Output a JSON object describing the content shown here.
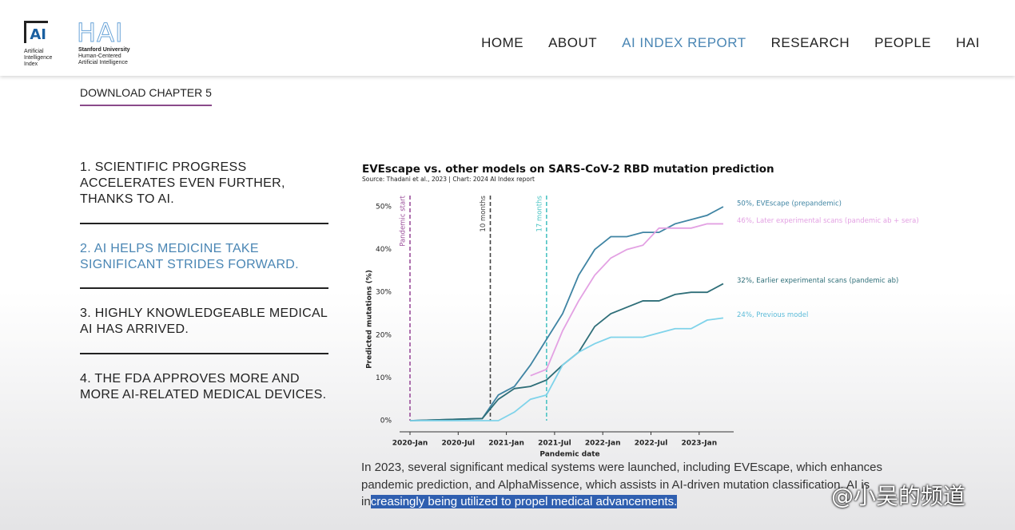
{
  "header": {
    "logo": "AI",
    "logo_lines": [
      "Artificial",
      "Intelligence",
      "Index"
    ],
    "hai": "HAI",
    "hai_lines": [
      "Stanford University",
      "Human-Centered",
      "Artificial Intelligence"
    ],
    "nav": [
      "HOME",
      "ABOUT",
      "AI INDEX REPORT",
      "RESEARCH",
      "PEOPLE",
      "HAI"
    ]
  },
  "download": "DOWNLOAD CHAPTER 5",
  "sidebar": [
    "1. SCIENTIFIC PROGRESS ACCELERATES EVEN FURTHER, THANKS TO AI.",
    "2. AI HELPS MEDICINE TAKE SIGNIFICANT STRIDES FORWARD.",
    "3. HIGHLY KNOWLEDGEABLE MEDICAL AI HAS ARRIVED.",
    "4. THE FDA APPROVES MORE AND MORE AI-RELATED MEDICAL DEVICES."
  ],
  "chart_data": {
    "type": "line",
    "title": "EVEscape vs. other models on SARS-CoV-2 RBD mutation prediction",
    "subtitle": "Source: Thadani et al., 2023 | Chart: 2024 AI Index report",
    "xlabel": "Pandemic date",
    "ylabel": "Predicted mutations (%)",
    "x": [
      "2020-01",
      "2020-10",
      "2020-12",
      "2021-02",
      "2021-04",
      "2021-06",
      "2021-08",
      "2021-10",
      "2021-12",
      "2022-02",
      "2022-04",
      "2022-06",
      "2022-08",
      "2022-10",
      "2022-12",
      "2023-02",
      "2023-04"
    ],
    "series": [
      {
        "name": "50%, EVEscape (prepandemic)",
        "color": "#3f84a3",
        "values": [
          0,
          0.5,
          6,
          8,
          13,
          19,
          25,
          34,
          40,
          43,
          43,
          44,
          44,
          46,
          47,
          48,
          50
        ]
      },
      {
        "name": "46%, Later experimental scans (pandemic ab + sera)",
        "color": "#e3a1e3",
        "values": [
          null,
          null,
          null,
          null,
          10.5,
          12,
          21,
          28,
          34,
          38,
          40,
          41,
          45,
          45,
          45,
          46,
          46
        ]
      },
      {
        "name": "32%, Earlier experimental scans (pandemic ab)",
        "color": "#2e6e78",
        "values": [
          0,
          0.5,
          5,
          7.5,
          8,
          9.5,
          13,
          16,
          22,
          25,
          26.5,
          28,
          28,
          29.5,
          30,
          30,
          32
        ]
      },
      {
        "name": "24%, Previous model",
        "color": "#7fd3ea",
        "values": [
          0,
          0,
          0,
          2,
          5,
          6,
          13,
          16,
          18,
          19.5,
          19.5,
          19.5,
          20.5,
          21.5,
          21.5,
          23.5,
          24
        ]
      }
    ],
    "annotations": [
      {
        "label": "Pandemic start",
        "x": "2020-01",
        "color": "#9b4f9b"
      },
      {
        "label": "10 months",
        "x": "2020-11",
        "color": "#444444"
      },
      {
        "label": "17 months",
        "x": "2021-06",
        "color": "#4cc4c4"
      }
    ],
    "xlim": [
      "2020-01",
      "2023-05"
    ],
    "xticks": [
      {
        "value": "2020-01",
        "label": "2020-Jan"
      },
      {
        "value": "2020-07",
        "label": "2020-Jul"
      },
      {
        "value": "2021-01",
        "label": "2021-Jan"
      },
      {
        "value": "2021-07",
        "label": "2021-Jul"
      },
      {
        "value": "2022-01",
        "label": "2022-Jan"
      },
      {
        "value": "2022-07",
        "label": "2022-Jul"
      },
      {
        "value": "2023-01",
        "label": "2023-Jan"
      }
    ],
    "ylim": [
      0,
      50
    ],
    "yticks": [
      {
        "value": 0,
        "label": "0%"
      },
      {
        "value": 10,
        "label": "10%"
      },
      {
        "value": 20,
        "label": "20%"
      },
      {
        "value": 30,
        "label": "30%"
      },
      {
        "value": 40,
        "label": "40%"
      },
      {
        "value": 50,
        "label": "50%"
      }
    ]
  },
  "caption": {
    "before": "In 2023, several significant medical systems were launched, including EVEscape, which enhances pandemic prediction, and AlphaMissence, which assists in AI-driven mutation classification. AI is in",
    "highlighted": "creasingly being utilized to propel medical advancements."
  },
  "watermark": "@小吴的频道"
}
